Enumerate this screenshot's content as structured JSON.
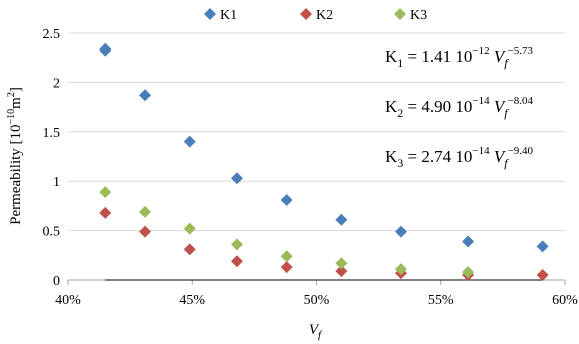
{
  "chart_data": {
    "type": "scatter",
    "title": "",
    "xlabel": "V",
    "xlabel_sub": "f",
    "ylabel": "Permeability [10",
    "ylabel_exp": "−10",
    "ylabel_unit": "m",
    "ylabel_unit_exp": "2",
    "ylabel_close": "]",
    "xlim": [
      0.4,
      0.6
    ],
    "ylim": [
      0,
      2.5
    ],
    "x_ticks": [
      0.4,
      0.45,
      0.5,
      0.55,
      0.6
    ],
    "x_tick_labels": [
      "40%",
      "45%",
      "50%",
      "55%",
      "60%"
    ],
    "y_ticks": [
      0,
      0.5,
      1,
      1.5,
      2,
      2.5
    ],
    "y_tick_labels": [
      "0",
      "0.5",
      "1",
      "1.5",
      "2",
      "2.5"
    ],
    "grid": "horizontal",
    "legend_position": "top",
    "series": [
      {
        "name": "K1",
        "color": "#4a7ebb",
        "x": [
          0.415,
          0.415,
          0.431,
          0.449,
          0.468,
          0.488,
          0.51,
          0.534,
          0.561,
          0.591
        ],
        "y": [
          2.32,
          2.34,
          1.87,
          1.4,
          1.03,
          0.81,
          0.61,
          0.49,
          0.39,
          0.34
        ],
        "fit": {
          "a": 1.41e-12,
          "b": -5.73
        }
      },
      {
        "name": "K2",
        "color": "#c0504d",
        "x": [
          0.415,
          0.431,
          0.449,
          0.468,
          0.488,
          0.51,
          0.534,
          0.561,
          0.591
        ],
        "y": [
          0.68,
          0.49,
          0.31,
          0.19,
          0.13,
          0.09,
          0.07,
          0.05,
          0.05
        ],
        "fit": {
          "a": 4.9e-14,
          "b": -8.04
        }
      },
      {
        "name": "K3",
        "color": "#9bbb59",
        "x": [
          0.415,
          0.431,
          0.449,
          0.468,
          0.488,
          0.51,
          0.534,
          0.561
        ],
        "y": [
          0.89,
          0.69,
          0.52,
          0.36,
          0.24,
          0.17,
          0.11,
          0.08
        ],
        "fit": {
          "a": 2.74e-14,
          "b": -9.4
        }
      }
    ],
    "annotations": [
      {
        "base": "K",
        "sub": "1",
        "coef": " = 1.41 10",
        "exp1": "−12",
        "var": " V",
        "vsub": "f",
        "exp2": "−5.73"
      },
      {
        "base": "K",
        "sub": "2",
        "coef": " = 4.90 10",
        "exp1": "−14",
        "var": " V",
        "vsub": "f",
        "exp2": "−8.04"
      },
      {
        "base": "K",
        "sub": "3",
        "coef": " = 2.74 10",
        "exp1": "−14",
        "var": " V",
        "vsub": "f",
        "exp2": "−9.40"
      }
    ]
  }
}
